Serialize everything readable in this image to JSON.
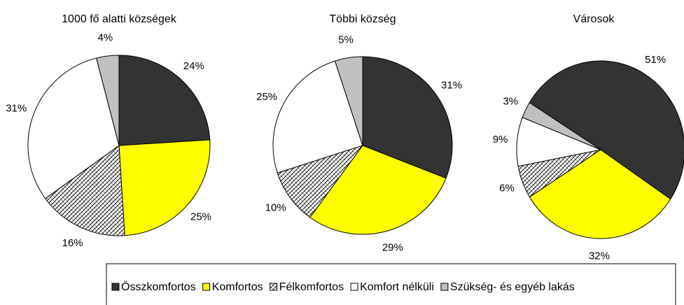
{
  "chart_data": [
    {
      "type": "pie",
      "title": "1000 fő alatti községek",
      "categories": [
        "Összkomfortos",
        "Komfortos",
        "Félkomfortos",
        "Komfort nélküli",
        "Szükség- és egyéb lakás"
      ],
      "values": [
        24,
        25,
        16,
        31,
        4
      ],
      "value_labels": [
        "24%",
        "25%",
        "16%",
        "31%",
        "4%"
      ],
      "colors": [
        "#333333",
        "#ffff00",
        "hatch",
        "#ffffff",
        "#c0c0c0"
      ]
    },
    {
      "type": "pie",
      "title": "Többi község",
      "categories": [
        "Összkomfortos",
        "Komfortos",
        "Félkomfortos",
        "Komfort nélküli",
        "Szükség- és egyéb lakás"
      ],
      "values": [
        31,
        29,
        10,
        25,
        5
      ],
      "value_labels": [
        "31%",
        "29%",
        "10%",
        "25%",
        "5%"
      ],
      "colors": [
        "#333333",
        "#ffff00",
        "hatch",
        "#ffffff",
        "#c0c0c0"
      ]
    },
    {
      "type": "pie",
      "title": "Városok",
      "categories": [
        "Összkomfortos",
        "Komfortos",
        "Félkomfortos",
        "Komfort nélküli",
        "Szükség- és egyéb lakás"
      ],
      "values": [
        51,
        32,
        6,
        9,
        3
      ],
      "value_labels": [
        "51%",
        "32%",
        "6%",
        "9%",
        "3%"
      ],
      "colors": [
        "#333333",
        "#ffff00",
        "hatch",
        "#ffffff",
        "#c0c0c0"
      ]
    }
  ]
}
